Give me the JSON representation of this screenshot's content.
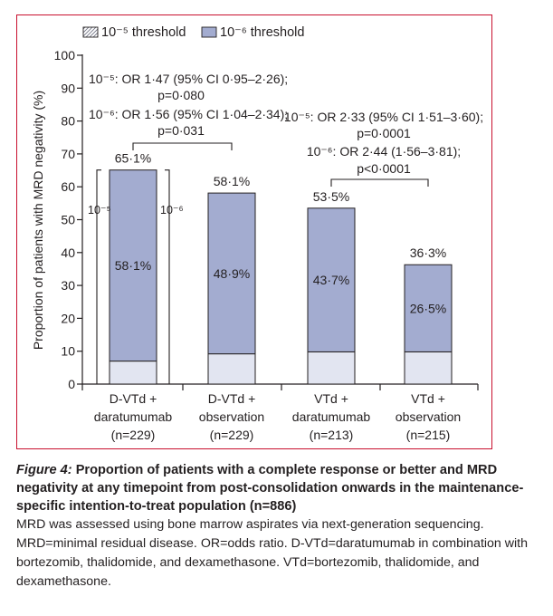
{
  "chart_data": {
    "type": "bar",
    "ylabel": "Proportion of patients with MRD negativity (%)",
    "ylim": [
      0,
      100
    ],
    "yticks": [
      0,
      10,
      20,
      30,
      40,
      50,
      60,
      70,
      80,
      90,
      100
    ],
    "legend": [
      {
        "name": "10⁻⁵ threshold",
        "color": "#e2e5f1",
        "hatch": true
      },
      {
        "name": "10⁻⁶ threshold",
        "color": "#a3acd0",
        "hatch": false
      }
    ],
    "legend_position": "top",
    "categories": [
      [
        "D-VTd +",
        "daratumumab",
        "(n=229)"
      ],
      [
        "D-VTd +",
        "observation",
        "(n=229)"
      ],
      [
        "VTd +",
        "daratumumab",
        "(n=213)"
      ],
      [
        "VTd +",
        "observation",
        "(n=215)"
      ]
    ],
    "series": [
      {
        "name": "10⁻⁵ threshold",
        "values": [
          65.1,
          58.1,
          53.5,
          36.3
        ],
        "labels": [
          "65·1%",
          "58·1%",
          "53·5%",
          "36·3%"
        ]
      },
      {
        "name": "10⁻⁶ threshold",
        "values": [
          58.1,
          48.9,
          43.7,
          26.5
        ],
        "labels": [
          "58·1%",
          "48·9%",
          "43·7%",
          "26·5%"
        ]
      }
    ],
    "bracket_labels": {
      "left": "10⁻⁵",
      "right": "10⁻⁶"
    },
    "annotations": [
      {
        "lines": [
          "10⁻⁵: OR 1·47 (95% CI 0·95–2·26);",
          "p=0·080",
          "10⁻⁶: OR 1·56 (95% CI 1·04–2·34);",
          "p=0·031"
        ]
      },
      {
        "lines": [
          "10⁻⁵: OR 2·33 (95% CI 1·51–3·60);",
          "p=0·0001",
          "10⁻⁶: OR 2·44 (1·56–3·81);",
          "p<0·0001"
        ]
      }
    ]
  },
  "caption": {
    "figure_label": "Figure 4:",
    "title": "Proportion of patients with a complete response or better and MRD negativity at any timepoint from post-consolidation onwards in the maintenance-specific intention-to-treat population (n=886)",
    "body": "MRD was assessed using bone marrow aspirates via next-generation sequencing. MRD=minimal residual disease. OR=odds ratio. D-VTd=daratumumab in combination with bortezomib, thalidomide, and dexamethasone. VTd=bortezomib, thalidomide, and dexamethasone."
  }
}
